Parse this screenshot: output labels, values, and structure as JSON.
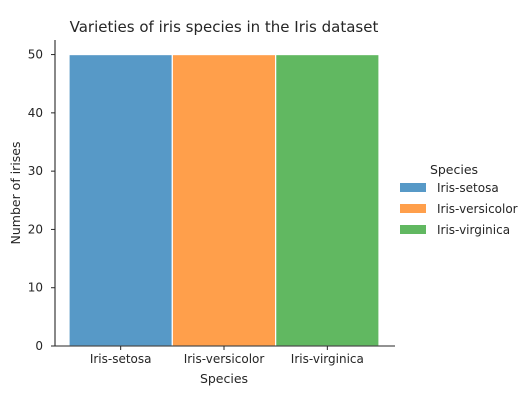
{
  "chart_data": {
    "type": "bar",
    "title": "Varieties of iris species in the Iris dataset",
    "xlabel": "Species",
    "ylabel": "Number of irises",
    "categories": [
      "Iris-setosa",
      "Iris-versicolor",
      "Iris-virginica"
    ],
    "values": [
      50,
      50,
      50
    ],
    "colors": [
      "#5799c7",
      "#ff9f4b",
      "#61b861"
    ],
    "ylim": [
      0,
      52.5
    ],
    "yticks": [
      0,
      10,
      20,
      30,
      40,
      50
    ],
    "grid": false,
    "legend": {
      "title": "Species",
      "placement": "right",
      "entries": [
        "Iris-setosa",
        "Iris-versicolor",
        "Iris-virginica"
      ]
    }
  }
}
